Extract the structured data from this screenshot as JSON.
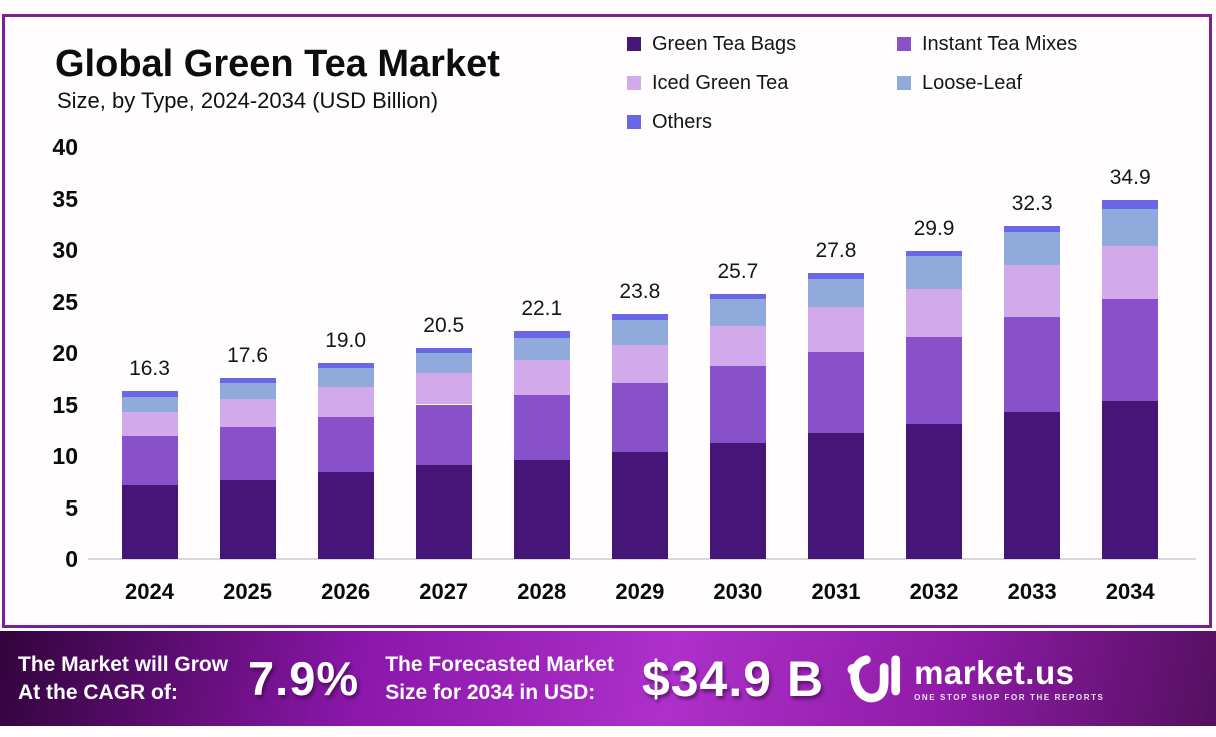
{
  "header": {
    "title": "Global Green Tea Market",
    "subtitle": "Size, by Type, 2024-2034 (USD Billion)"
  },
  "chart_data": {
    "type": "bar",
    "stacked": true,
    "title": "Global Green Tea Market Size, by Type, 2024-2034 (USD Billion)",
    "categories": [
      "2024",
      "2025",
      "2026",
      "2027",
      "2028",
      "2029",
      "2030",
      "2031",
      "2032",
      "2033",
      "2034"
    ],
    "series": [
      {
        "name": "Green Tea Bags",
        "color": "#451678",
        "values": [
          7.2,
          7.7,
          8.4,
          9.1,
          9.6,
          10.4,
          11.3,
          12.2,
          13.1,
          14.3,
          15.3
        ]
      },
      {
        "name": "Instant Tea Mixes",
        "color": "#8951c9",
        "values": [
          4.7,
          5.1,
          5.4,
          5.9,
          6.3,
          6.7,
          7.4,
          7.9,
          8.5,
          9.2,
          9.9
        ]
      },
      {
        "name": "Iced Green Tea",
        "color": "#d2a9ea",
        "values": [
          2.4,
          2.7,
          2.9,
          3.1,
          3.4,
          3.7,
          3.9,
          4.4,
          4.6,
          5.0,
          5.2
        ]
      },
      {
        "name": "Loose-Leaf",
        "color": "#90aadc",
        "values": [
          1.4,
          1.6,
          1.8,
          1.9,
          2.2,
          2.4,
          2.6,
          2.7,
          3.2,
          3.2,
          3.6
        ]
      },
      {
        "name": "Others",
        "color": "#6b66e6",
        "values": [
          0.6,
          0.5,
          0.5,
          0.5,
          0.6,
          0.6,
          0.5,
          0.6,
          0.5,
          0.6,
          0.9
        ]
      }
    ],
    "totals": [
      16.3,
      17.6,
      19.0,
      20.5,
      22.1,
      23.8,
      25.7,
      27.8,
      29.9,
      32.3,
      34.9
    ],
    "total_labels": [
      "16.3",
      "17.6",
      "19.0",
      "20.5",
      "22.1",
      "23.8",
      "25.7",
      "27.8",
      "29.9",
      "32.3",
      "34.9"
    ],
    "xlabel": "",
    "ylabel": "",
    "ylim": [
      0,
      40
    ],
    "yticks": [
      0,
      5,
      10,
      15,
      20,
      25,
      30,
      35,
      40
    ],
    "grid": false,
    "legend_position": "top-right"
  },
  "banner": {
    "cagr_label_line1": "The Market will Grow",
    "cagr_label_line2": "At the CAGR of:",
    "cagr_value": "7.9%",
    "forecast_label_line1": "The Forecasted Market",
    "forecast_label_line2": "Size for 2034 in USD:",
    "forecast_value": "$34.9 B",
    "brand": "market.us",
    "brand_tagline": "ONE STOP SHOP FOR THE REPORTS",
    "gradient": [
      "#32043c",
      "#8b17ab",
      "#ad30ca",
      "#8e1ba6",
      "#541060"
    ]
  },
  "frame": {
    "border_color": "#7a2190",
    "baseline_color": "#dbd7db"
  }
}
